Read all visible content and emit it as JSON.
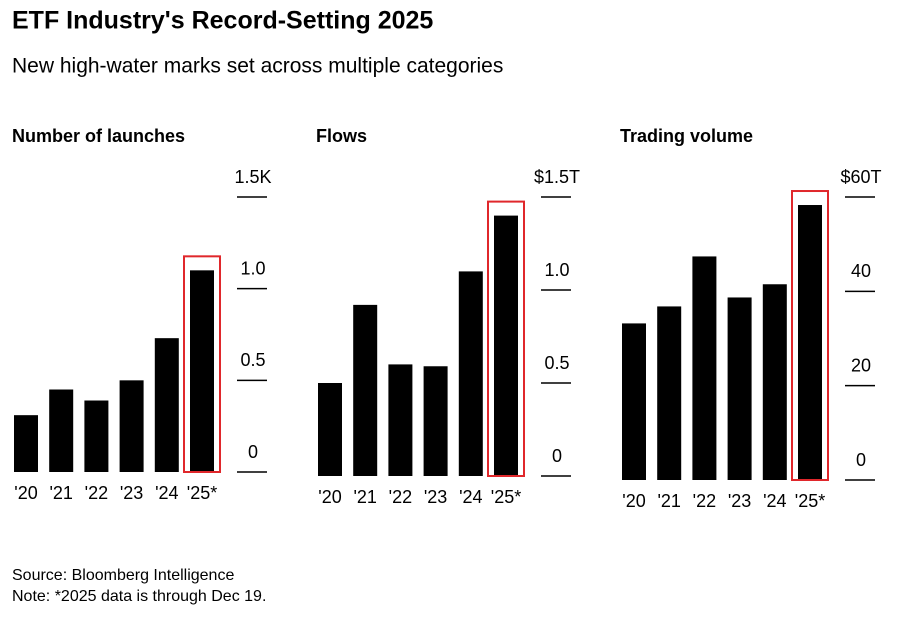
{
  "header": {
    "title": "ETF Industry's Record-Setting 2025",
    "subtitle": "New high-water marks set across multiple categories"
  },
  "chart_data": [
    {
      "type": "bar",
      "title": "Number of launches",
      "categories": [
        "'20",
        "'21",
        "'22",
        "'23",
        "'24",
        "'25*"
      ],
      "values": [
        0.31,
        0.45,
        0.39,
        0.5,
        0.73,
        1.1
      ],
      "color": "#000000",
      "ylim": [
        0,
        1.5
      ],
      "yticks": [
        0,
        0.5,
        {
          "value": 1,
          "label": "1.0"
        },
        {
          "value": 1.5,
          "label": "1.5K"
        }
      ],
      "highlight": 5,
      "highlight_color": "#e0272b"
    },
    {
      "type": "bar",
      "title": "Flows",
      "categories": [
        "'20",
        "'21",
        "'22",
        "'23",
        "'24",
        "'25*"
      ],
      "values": [
        0.5,
        0.92,
        0.6,
        0.59,
        1.1,
        1.4
      ],
      "color": "#000000",
      "ylim": [
        0,
        1.5
      ],
      "yticks": [
        0,
        0.5,
        {
          "value": 1,
          "label": "1.0"
        },
        {
          "value": 1.5,
          "label": "$1.5T"
        }
      ],
      "highlight": 5,
      "highlight_color": "#e0272b"
    },
    {
      "type": "bar",
      "title": "Trading volume",
      "categories": [
        "'20",
        "'21",
        "'22",
        "'23",
        "'24",
        "'25*"
      ],
      "values": [
        33.2,
        36.8,
        47.4,
        38.7,
        41.5,
        58.3
      ],
      "color": "#000000",
      "ylim": [
        0,
        60
      ],
      "yticks": [
        0,
        20,
        40,
        {
          "value": 60,
          "label": "$60T"
        }
      ],
      "highlight": 5,
      "highlight_color": "#e0272b"
    }
  ],
  "footer": {
    "source": "Source: Bloomberg Intelligence",
    "note": "Note: *2025 data is through Dec 19."
  }
}
